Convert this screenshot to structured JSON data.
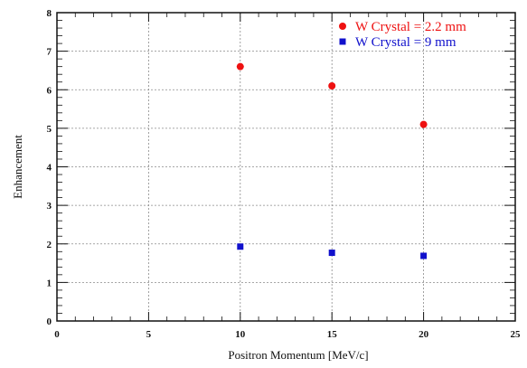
{
  "chart_data": {
    "type": "scatter",
    "title": "",
    "xlabel": "Positron Momentum [MeV/c]",
    "ylabel": "Enhancement",
    "xlim": [
      0,
      25
    ],
    "ylim": [
      0,
      8
    ],
    "xticks": [
      "0",
      "5",
      "10",
      "15",
      "20",
      "25"
    ],
    "yticks": [
      "0",
      "1",
      "2",
      "3",
      "4",
      "5",
      "6",
      "7",
      "8"
    ],
    "grid": true,
    "legend_position": "top-right",
    "series": [
      {
        "name": "W Crystal = 2.2 mm",
        "color": "#ee1111",
        "marker": "circle",
        "points": [
          {
            "x": 10,
            "y": 6.6
          },
          {
            "x": 15,
            "y": 6.1
          },
          {
            "x": 20,
            "y": 5.1
          }
        ]
      },
      {
        "name": "W Crystal = 9 mm",
        "color": "#1111cc",
        "marker": "square",
        "points": [
          {
            "x": 10,
            "y": 1.93
          },
          {
            "x": 15,
            "y": 1.77
          },
          {
            "x": 20,
            "y": 1.69
          }
        ]
      }
    ]
  }
}
